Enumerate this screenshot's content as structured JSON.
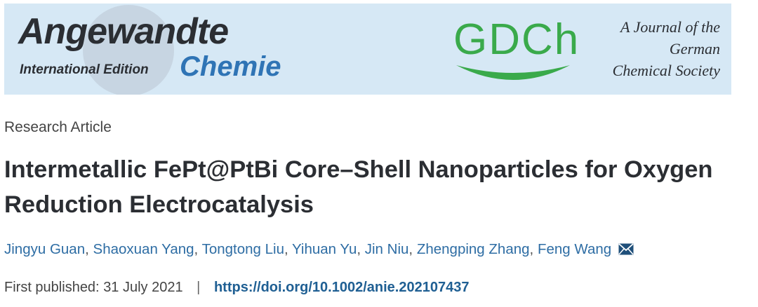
{
  "banner": {
    "title_main": "Angewandte",
    "title_edition": "International Edition",
    "title_chemie": "Chemie",
    "society_logo": "GDCh",
    "society_line1": "A Journal of the",
    "society_line2": "German",
    "society_line3": "Chemical Society"
  },
  "article": {
    "type": "Research Article",
    "title_line1": "Intermetallic FePt@PtBi Core–Shell Nanoparticles for Oxygen",
    "title_line2": "Reduction Electrocatalysis",
    "authors": [
      "Jingyu Guan",
      "Shaoxuan Yang",
      "Tongtong Liu",
      "Yihuan Yu",
      "Jin Niu",
      "Zhengping Zhang",
      "Feng Wang"
    ],
    "separator": ",",
    "corresponding_icon": "envelope-icon",
    "published_label": "First published:",
    "published_date": "31 July 2021",
    "divider": "|",
    "doi": "https://doi.org/10.1002/anie.202107437"
  },
  "colors": {
    "banner_bg": "#d6e8f5",
    "chemie_blue": "#2f74b5",
    "gdch_green": "#3aaa4b",
    "link_blue": "#2e6da4"
  }
}
